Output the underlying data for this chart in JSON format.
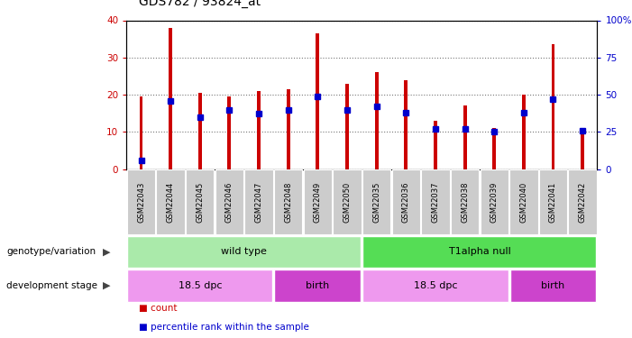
{
  "title": "GDS782 / 93824_at",
  "samples": [
    "GSM22043",
    "GSM22044",
    "GSM22045",
    "GSM22046",
    "GSM22047",
    "GSM22048",
    "GSM22049",
    "GSM22050",
    "GSM22035",
    "GSM22036",
    "GSM22037",
    "GSM22038",
    "GSM22039",
    "GSM22040",
    "GSM22041",
    "GSM22042"
  ],
  "counts": [
    19.5,
    38,
    20.5,
    19.5,
    21,
    21.5,
    36.5,
    23,
    26,
    24,
    13,
    17,
    11,
    20,
    33.5,
    9.5
  ],
  "percentile_ranks": [
    6,
    46,
    35,
    40,
    37,
    40,
    49,
    40,
    42,
    38,
    27,
    27,
    25,
    38,
    47,
    26
  ],
  "bar_color": "#cc0000",
  "pct_color": "#0000cc",
  "background_color": "#ffffff",
  "ylim_left": [
    0,
    40
  ],
  "ylim_right": [
    0,
    100
  ],
  "yticks_left": [
    0,
    10,
    20,
    30,
    40
  ],
  "yticks_right": [
    0,
    25,
    50,
    75,
    100
  ],
  "ytick_labels_right": [
    "0",
    "25",
    "50",
    "75",
    "100%"
  ],
  "annotation_rows": [
    {
      "label": "genotype/variation",
      "segments": [
        {
          "text": "wild type",
          "start": 0,
          "end": 8,
          "color": "#aaeaaa"
        },
        {
          "text": "T1alpha null",
          "start": 8,
          "end": 16,
          "color": "#55dd55"
        }
      ]
    },
    {
      "label": "development stage",
      "segments": [
        {
          "text": "18.5 dpc",
          "start": 0,
          "end": 5,
          "color": "#ee99ee"
        },
        {
          "text": "birth",
          "start": 5,
          "end": 8,
          "color": "#cc44cc"
        },
        {
          "text": "18.5 dpc",
          "start": 8,
          "end": 13,
          "color": "#ee99ee"
        },
        {
          "text": "birth",
          "start": 13,
          "end": 16,
          "color": "#cc44cc"
        }
      ]
    }
  ],
  "legend_items": [
    {
      "label": "count",
      "color": "#cc0000"
    },
    {
      "label": "percentile rank within the sample",
      "color": "#0000cc"
    }
  ],
  "bar_width": 0.12,
  "marker_size": 4
}
